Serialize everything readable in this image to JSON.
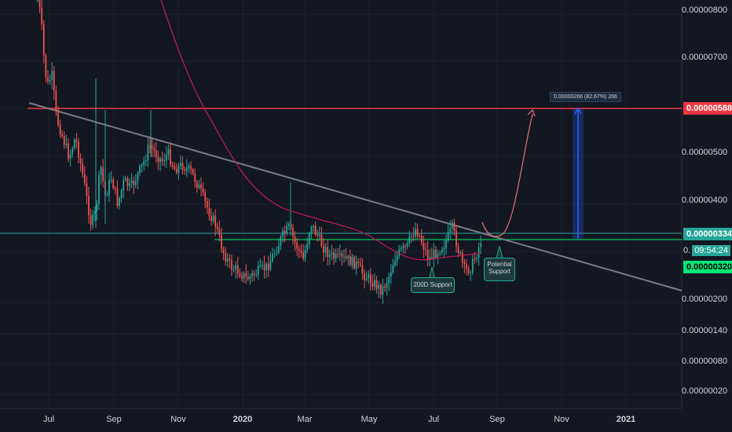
{
  "chart_data": {
    "type": "candlestick",
    "y_axis": {
      "ticks": [
        "0.00000800",
        "0.00000700",
        "0.00000588",
        "0.00000500",
        "0.00000400",
        "0.00000334",
        "0.00000320",
        "0.00000200",
        "0.00000140",
        "0.00000080",
        "0.00000020"
      ],
      "scale": "log"
    },
    "x_axis": {
      "ticks": [
        "Jul",
        "Sep",
        "Nov",
        "2020",
        "Mar",
        "May",
        "Jul",
        "Sep",
        "Nov",
        "2021"
      ],
      "bold_ticks": [
        "2020",
        "2021"
      ]
    },
    "price_tags": {
      "resistance": {
        "value": "0.00000588",
        "color": "#f23645"
      },
      "last": {
        "value": "0.00000334",
        "color": "#26a69a"
      },
      "countdown": {
        "value": "09:54:24",
        "prefix": "0."
      },
      "support": {
        "value": "0.00000320",
        "color": "#00e676"
      }
    },
    "annotations": {
      "support_200d": "200D Support",
      "potential_support": [
        "Potential",
        "Support"
      ],
      "measure": "0.00000266 (82.67%) 266"
    },
    "colors": {
      "up": "#26a69a",
      "down": "#ef5350",
      "trendline": "#787b86",
      "ma200": "#c2185b",
      "resistance": "#f23645",
      "support": "#00c853",
      "projection": "#e57373",
      "measure": "#2962ff"
    }
  }
}
